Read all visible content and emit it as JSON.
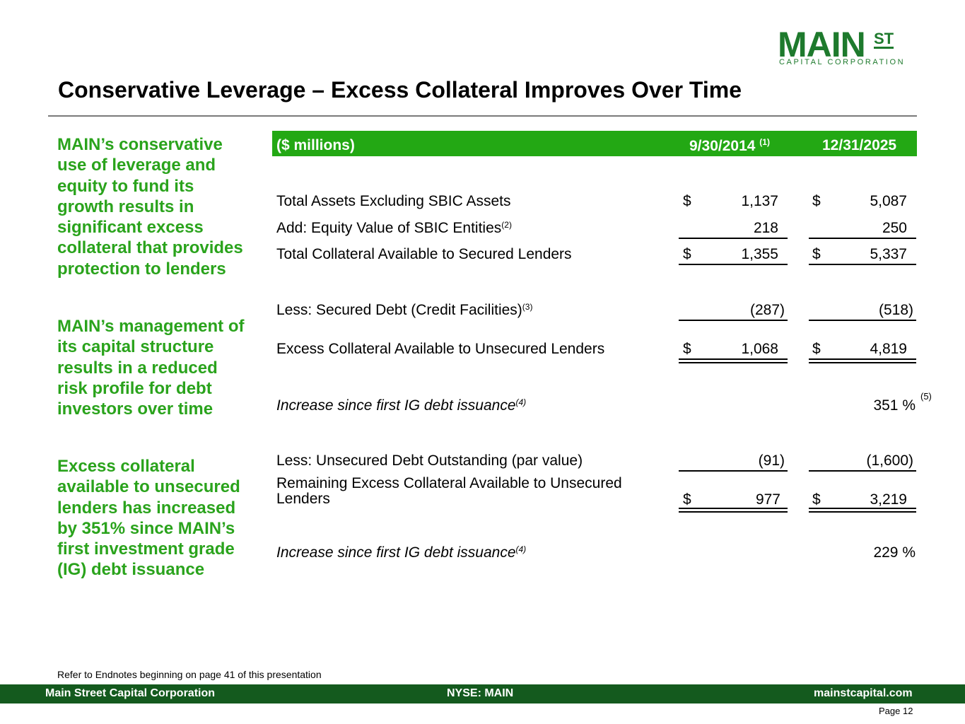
{
  "logo": {
    "main": "MAIN",
    "st": "ST",
    "sub": "CAPITAL CORPORATION"
  },
  "title": "Conservative Leverage – Excess Collateral Improves Over Time",
  "bullets": [
    "MAIN’s conservative use of leverage and equity to fund its growth results in significant excess collateral that provides protection to lenders",
    "MAIN’s management of its capital structure results in a reduced risk profile for debt investors over time",
    "Excess collateral available to unsecured lenders has increased by 351% since MAIN’s first investment grade (IG) debt issuance"
  ],
  "table": {
    "header": {
      "label": "($ millions)",
      "col1": "9/30/2014",
      "col1_note": "(1)",
      "col2": "12/31/2025"
    },
    "rows": {
      "total_assets": {
        "label": "Total Assets Excluding SBIC Assets",
        "dollar": "$",
        "v1": "1,137",
        "v2": "5,087"
      },
      "add_equity": {
        "label": "Add: Equity Value of SBIC Entities",
        "note": "(2)",
        "v1": "218",
        "v2": "250"
      },
      "total_collateral": {
        "label": "Total Collateral Available to Secured Lenders",
        "dollar": "$",
        "v1": "1,355",
        "v2": "5,337"
      },
      "secured_debt": {
        "label": "Less: Secured Debt (Credit Facilities)",
        "note": "(3)",
        "v1": "(287)",
        "v2": "(518)"
      },
      "excess_collateral": {
        "label": "Excess Collateral Available to Unsecured Lenders",
        "dollar": "$",
        "v1": "1,068",
        "v2": "4,819"
      },
      "increase1": {
        "label": "Increase since first IG debt issuance",
        "note": "(4)",
        "v2": "351 %",
        "v2_note": "(5)"
      },
      "unsecured_debt": {
        "label": "Less: Unsecured Debt Outstanding (par value)",
        "v1": "(91)",
        "v2": "(1,600)"
      },
      "remaining_line1": "Remaining Excess Collateral Available to Unsecured",
      "remaining_line2": "Lenders",
      "remaining": {
        "dollar": "$",
        "v1": "977",
        "v2": "3,219"
      },
      "increase2": {
        "label": "Increase since first IG debt issuance",
        "note": "(4)",
        "v2": "229 %"
      }
    }
  },
  "ref_note": "Refer to Endnotes beginning on page 41 of this presentation",
  "footer": {
    "left": "Main Street Capital Corporation",
    "center": "NYSE: MAIN",
    "right": "mainstcapital.com"
  },
  "page": "Page  12",
  "colors": {
    "brand_green": "#1e7a2d",
    "header_green": "#23a814",
    "bullet_green": "#2aa31c",
    "footer_green": "#145a1e"
  }
}
